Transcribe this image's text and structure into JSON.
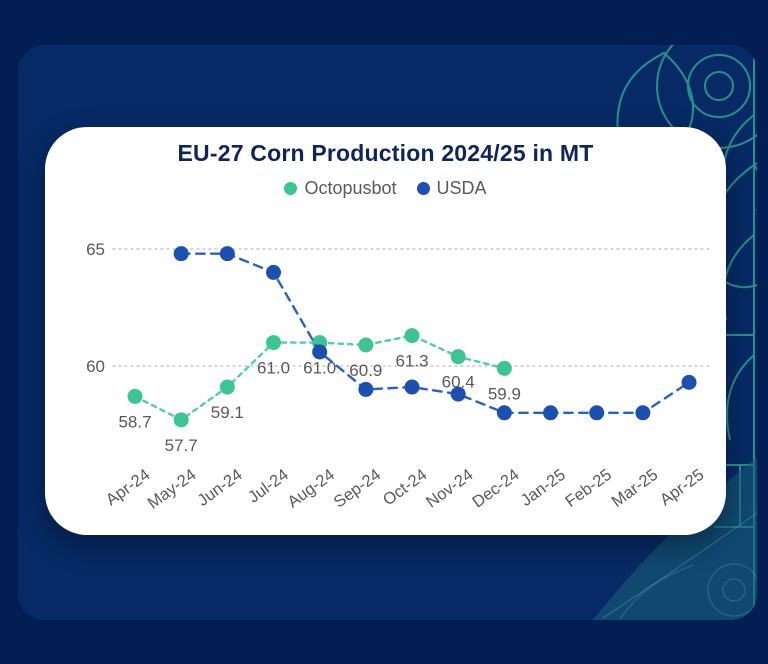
{
  "card": {
    "title": "EU-27 Corn Production 2024/25 in MT"
  },
  "legend": {
    "items": [
      {
        "label": "Octopusbot",
        "color": "#3cc492"
      },
      {
        "label": "USDA",
        "color": "#1c4fae"
      }
    ]
  },
  "chart_data": {
    "type": "line",
    "title": "EU-27 Corn Production 2024/25 in MT",
    "categories": [
      "Apr-24",
      "May-24",
      "Jun-24",
      "Jul-24",
      "Aug-24",
      "Sep-24",
      "Oct-24",
      "Nov-24",
      "Dec-24",
      "Jan-25",
      "Feb-25",
      "Mar-25",
      "Apr-25"
    ],
    "xlabel": "",
    "ylabel": "",
    "y_ticks": [
      65,
      60
    ],
    "ylim": [
      56.5,
      66.5
    ],
    "grid": "horizontal-dotted",
    "legend_position": "top-center",
    "axis_color": "#595959",
    "gridline_color": "#c9c9c9",
    "series": [
      {
        "name": "Octopusbot",
        "marker_color": "#3cc492",
        "line_color": "#55cda1",
        "dash": [
          4.5,
          5
        ],
        "show_point_labels": true,
        "values": [
          58.7,
          57.7,
          59.1,
          61.0,
          61.0,
          60.9,
          61.3,
          60.4,
          59.9,
          null,
          null,
          null,
          null
        ],
        "point_labels": [
          "58.7",
          "57.7",
          "59.1",
          "61.0",
          "61.0",
          "60.9",
          "61.3",
          "60.4",
          "59.9"
        ]
      },
      {
        "name": "USDA",
        "marker_color": "#1c4fae",
        "line_color": "#2a5fc4",
        "dash": [
          8.5,
          6.5
        ],
        "show_point_labels": false,
        "values": [
          null,
          64.8,
          64.8,
          64.0,
          60.6,
          59.0,
          59.1,
          58.8,
          58.0,
          58.0,
          58.0,
          58.0,
          59.3
        ]
      }
    ]
  }
}
